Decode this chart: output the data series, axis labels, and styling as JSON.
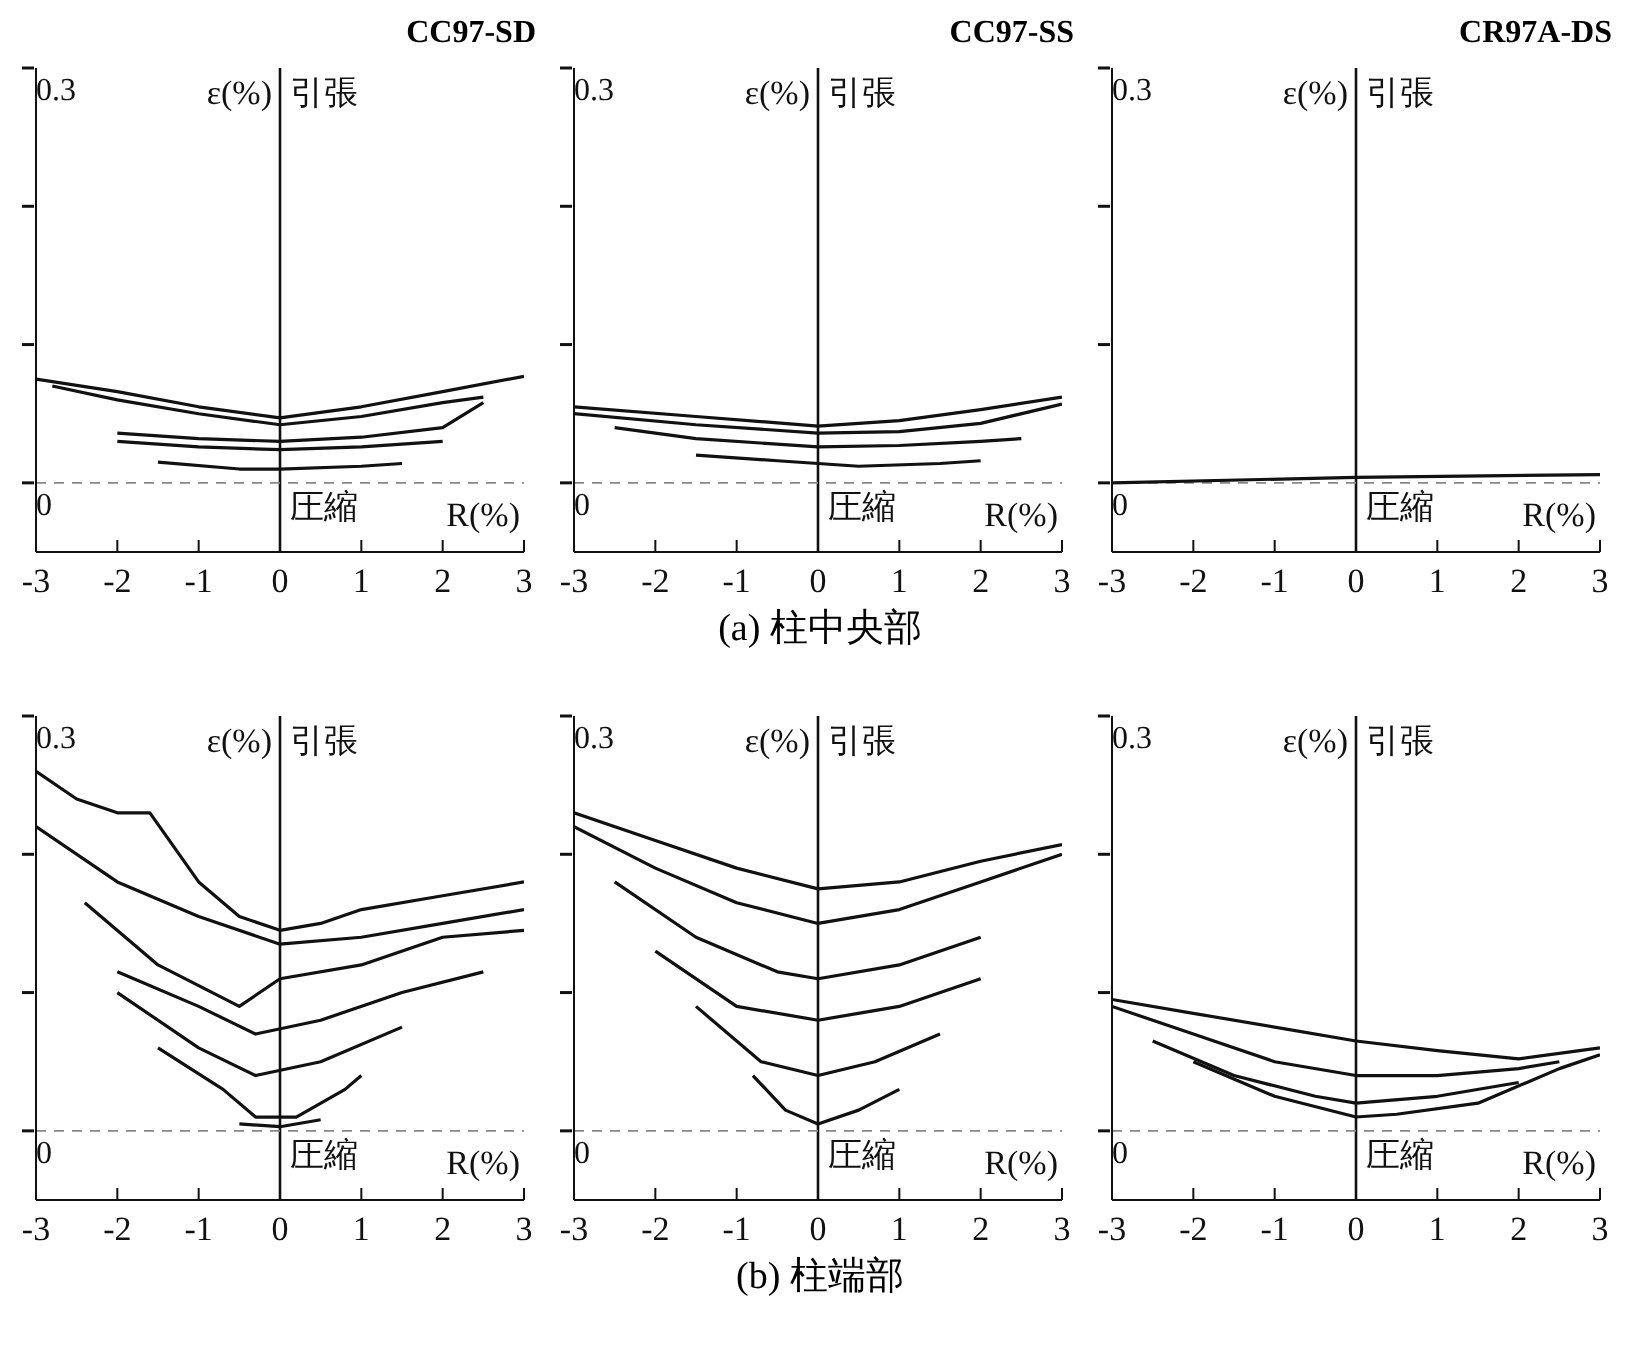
{
  "chart_data": [
    {
      "type": "line",
      "title": "CC97-SD",
      "xlabel": "R(%)",
      "ylabel": "ε(%)",
      "annotations": [
        "引張",
        "圧縮"
      ],
      "xlim": [
        -3,
        3
      ],
      "ylim": [
        -0.05,
        0.3
      ],
      "xticks": [
        -3,
        -2,
        -1,
        0,
        1,
        2,
        3
      ],
      "yticks": [
        {
          "value": 0,
          "label": "0"
        },
        {
          "value": 0.1,
          "label": null
        },
        {
          "value": 0.2,
          "label": null
        },
        {
          "value": 0.3,
          "label": "0.3"
        }
      ],
      "ref_lines": [
        {
          "axis": "x",
          "value": 0
        },
        {
          "axis": "y",
          "value": 0,
          "line_style": "dashed"
        }
      ],
      "series": [
        {
          "color": "#111111",
          "x": [
            -3,
            -2,
            -1,
            0,
            1,
            2,
            3
          ],
          "values": [
            0.075,
            0.066,
            0.055,
            0.047,
            0.055,
            0.066,
            0.077
          ]
        },
        {
          "color": "#111111",
          "x": [
            -2.8,
            -2,
            -1,
            0,
            1,
            2,
            2.5
          ],
          "values": [
            0.07,
            0.06,
            0.05,
            0.042,
            0.048,
            0.058,
            0.062
          ]
        },
        {
          "color": "#111111",
          "x": [
            -2,
            -1,
            0,
            1,
            2,
            2.5
          ],
          "values": [
            0.036,
            0.032,
            0.03,
            0.033,
            0.04,
            0.058
          ]
        },
        {
          "color": "#111111",
          "x": [
            -2,
            -1,
            0,
            1,
            2
          ],
          "values": [
            0.03,
            0.026,
            0.024,
            0.026,
            0.03
          ]
        },
        {
          "color": "#111111",
          "x": [
            -1.5,
            -0.5,
            0,
            1,
            1.5
          ],
          "values": [
            0.015,
            0.01,
            0.01,
            0.012,
            0.014
          ]
        }
      ]
    },
    {
      "type": "line",
      "title": "CC97-SS",
      "xlabel": "R(%)",
      "ylabel": "ε(%)",
      "annotations": [
        "引張",
        "圧縮",
        "(a) 柱中央部"
      ],
      "xlim": [
        -3,
        3
      ],
      "ylim": [
        -0.05,
        0.3
      ],
      "xticks": [
        -3,
        -2,
        -1,
        0,
        1,
        2,
        3
      ],
      "yticks": [
        {
          "value": 0,
          "label": "0"
        },
        {
          "value": 0.1,
          "label": null
        },
        {
          "value": 0.2,
          "label": null
        },
        {
          "value": 0.3,
          "label": "0.3"
        }
      ],
      "ref_lines": [
        {
          "axis": "x",
          "value": 0
        },
        {
          "axis": "y",
          "value": 0,
          "line_style": "dashed"
        }
      ],
      "series": [
        {
          "color": "#111111",
          "x": [
            -3,
            -1.5,
            0,
            1,
            2,
            3
          ],
          "values": [
            0.055,
            0.048,
            0.041,
            0.045,
            0.053,
            0.062
          ]
        },
        {
          "color": "#111111",
          "x": [
            -3,
            -1.5,
            0,
            1,
            2,
            3
          ],
          "values": [
            0.05,
            0.042,
            0.036,
            0.037,
            0.043,
            0.057
          ]
        },
        {
          "color": "#111111",
          "x": [
            -2.5,
            -1.5,
            0,
            1,
            2,
            2.5
          ],
          "values": [
            0.04,
            0.032,
            0.026,
            0.027,
            0.03,
            0.032
          ]
        },
        {
          "color": "#111111",
          "x": [
            -1.5,
            -0.5,
            0.5,
            1.5,
            2
          ],
          "values": [
            0.02,
            0.016,
            0.012,
            0.014,
            0.016
          ]
        }
      ]
    },
    {
      "type": "line",
      "title": "CR97A-DS",
      "xlabel": "R(%)",
      "ylabel": "ε(%)",
      "annotations": [
        "引張",
        "圧縮"
      ],
      "xlim": [
        -3,
        3
      ],
      "ylim": [
        -0.05,
        0.3
      ],
      "xticks": [
        -3,
        -2,
        -1,
        0,
        1,
        2,
        3
      ],
      "yticks": [
        {
          "value": 0,
          "label": "0"
        },
        {
          "value": 0.1,
          "label": null
        },
        {
          "value": 0.2,
          "label": null
        },
        {
          "value": 0.3,
          "label": "0.3"
        }
      ],
      "ref_lines": [
        {
          "axis": "x",
          "value": 0
        },
        {
          "axis": "y",
          "value": 0,
          "line_style": "dashed"
        }
      ],
      "series": [
        {
          "color": "#111111",
          "x": [
            -3,
            0,
            3
          ],
          "values": [
            0,
            0.004,
            0.006
          ]
        }
      ]
    },
    {
      "type": "line",
      "xlabel": "R(%)",
      "ylabel": "ε(%)",
      "annotations": [
        "引張",
        "圧縮"
      ],
      "xlim": [
        -3,
        3
      ],
      "ylim": [
        -0.05,
        0.3
      ],
      "xticks": [
        -3,
        -2,
        -1,
        0,
        1,
        2,
        3
      ],
      "yticks": [
        {
          "value": 0,
          "label": "0"
        },
        {
          "value": 0.1,
          "label": null
        },
        {
          "value": 0.2,
          "label": null
        },
        {
          "value": 0.3,
          "label": "0.3"
        }
      ],
      "ref_lines": [
        {
          "axis": "x",
          "value": 0
        },
        {
          "axis": "y",
          "value": 0,
          "line_style": "dashed"
        }
      ],
      "series": [
        {
          "color": "#111111",
          "x": [
            -3,
            -2.5,
            -2,
            -1.6,
            -1,
            -0.5,
            0,
            0.5,
            1,
            2,
            3
          ],
          "values": [
            0.26,
            0.24,
            0.23,
            0.23,
            0.18,
            0.155,
            0.145,
            0.15,
            0.16,
            0.17,
            0.18
          ]
        },
        {
          "color": "#111111",
          "x": [
            -3,
            -2,
            -1,
            0,
            1,
            2,
            3
          ],
          "values": [
            0.22,
            0.18,
            0.155,
            0.135,
            0.14,
            0.15,
            0.16
          ]
        },
        {
          "color": "#111111",
          "x": [
            -2.4,
            -1.5,
            -0.5,
            0,
            1,
            2,
            3
          ],
          "values": [
            0.165,
            0.12,
            0.09,
            0.11,
            0.12,
            0.14,
            0.145
          ]
        },
        {
          "color": "#111111",
          "x": [
            -2,
            -1,
            -0.3,
            0.5,
            1.5,
            2.5
          ],
          "values": [
            0.115,
            0.09,
            0.07,
            0.08,
            0.1,
            0.115
          ]
        },
        {
          "color": "#111111",
          "x": [
            -2,
            -1,
            -0.3,
            0.5,
            1.5
          ],
          "values": [
            0.1,
            0.06,
            0.04,
            0.05,
            0.075
          ]
        },
        {
          "color": "#111111",
          "x": [
            -1.5,
            -0.7,
            -0.3,
            0.2,
            0.8,
            1
          ],
          "values": [
            0.06,
            0.03,
            0.01,
            0.01,
            0.03,
            0.04
          ]
        },
        {
          "color": "#111111",
          "x": [
            -0.5,
            0,
            0.5
          ],
          "values": [
            0.005,
            0.003,
            0.008
          ]
        }
      ]
    },
    {
      "type": "line",
      "xlabel": "R(%)",
      "ylabel": "ε(%)",
      "annotations": [
        "引張",
        "圧縮",
        "(b) 柱端部"
      ],
      "xlim": [
        -3,
        3
      ],
      "ylim": [
        -0.05,
        0.3
      ],
      "xticks": [
        -3,
        -2,
        -1,
        0,
        1,
        2,
        3
      ],
      "yticks": [
        {
          "value": 0,
          "label": "0"
        },
        {
          "value": 0.1,
          "label": null
        },
        {
          "value": 0.2,
          "label": null
        },
        {
          "value": 0.3,
          "label": "0.3"
        }
      ],
      "ref_lines": [
        {
          "axis": "x",
          "value": 0
        },
        {
          "axis": "y",
          "value": 0,
          "line_style": "dashed"
        }
      ],
      "series": [
        {
          "color": "#111111",
          "x": [
            -3,
            -2,
            -1,
            0,
            1,
            2,
            3
          ],
          "values": [
            0.23,
            0.21,
            0.19,
            0.175,
            0.18,
            0.195,
            0.207
          ]
        },
        {
          "color": "#111111",
          "x": [
            -3,
            -2,
            -1,
            0,
            1,
            2,
            3
          ],
          "values": [
            0.22,
            0.19,
            0.165,
            0.15,
            0.16,
            0.18,
            0.2
          ]
        },
        {
          "color": "#111111",
          "x": [
            -2.5,
            -1.5,
            -0.5,
            0,
            1,
            2
          ],
          "values": [
            0.18,
            0.14,
            0.115,
            0.11,
            0.12,
            0.14
          ]
        },
        {
          "color": "#111111",
          "x": [
            -2,
            -1,
            0,
            1,
            2
          ],
          "values": [
            0.13,
            0.09,
            0.08,
            0.09,
            0.11
          ]
        },
        {
          "color": "#111111",
          "x": [
            -1.5,
            -0.7,
            0,
            0.7,
            1.5
          ],
          "values": [
            0.09,
            0.05,
            0.04,
            0.05,
            0.07
          ]
        },
        {
          "color": "#111111",
          "x": [
            -0.8,
            -0.4,
            0,
            0.5,
            1
          ],
          "values": [
            0.04,
            0.015,
            0.005,
            0.015,
            0.03
          ]
        }
      ]
    },
    {
      "type": "line",
      "xlabel": "R(%)",
      "ylabel": "ε(%)",
      "annotations": [
        "引張",
        "圧縮"
      ],
      "xlim": [
        -3,
        3
      ],
      "ylim": [
        -0.05,
        0.3
      ],
      "xticks": [
        -3,
        -2,
        -1,
        0,
        1,
        2,
        3
      ],
      "yticks": [
        {
          "value": 0,
          "label": "0"
        },
        {
          "value": 0.1,
          "label": null
        },
        {
          "value": 0.2,
          "label": null
        },
        {
          "value": 0.3,
          "label": "0.3"
        }
      ],
      "ref_lines": [
        {
          "axis": "x",
          "value": 0
        },
        {
          "axis": "y",
          "value": 0,
          "line_style": "dashed"
        }
      ],
      "series": [
        {
          "color": "#111111",
          "x": [
            -3,
            -2,
            -1,
            0,
            1,
            2,
            3
          ],
          "values": [
            0.095,
            0.085,
            0.075,
            0.065,
            0.058,
            0.052,
            0.06
          ]
        },
        {
          "color": "#111111",
          "x": [
            -3,
            -2,
            -1,
            0,
            1,
            2,
            2.5
          ],
          "values": [
            0.09,
            0.07,
            0.05,
            0.04,
            0.04,
            0.045,
            0.05
          ]
        },
        {
          "color": "#111111",
          "x": [
            -2.5,
            -1.5,
            -0.5,
            0,
            1,
            2
          ],
          "values": [
            0.065,
            0.04,
            0.025,
            0.02,
            0.025,
            0.035
          ]
        },
        {
          "color": "#111111",
          "x": [
            -2,
            -1,
            0,
            0.5,
            1.5,
            2.5,
            3
          ],
          "values": [
            0.05,
            0.025,
            0.01,
            0.012,
            0.02,
            0.045,
            0.055
          ]
        }
      ]
    }
  ]
}
